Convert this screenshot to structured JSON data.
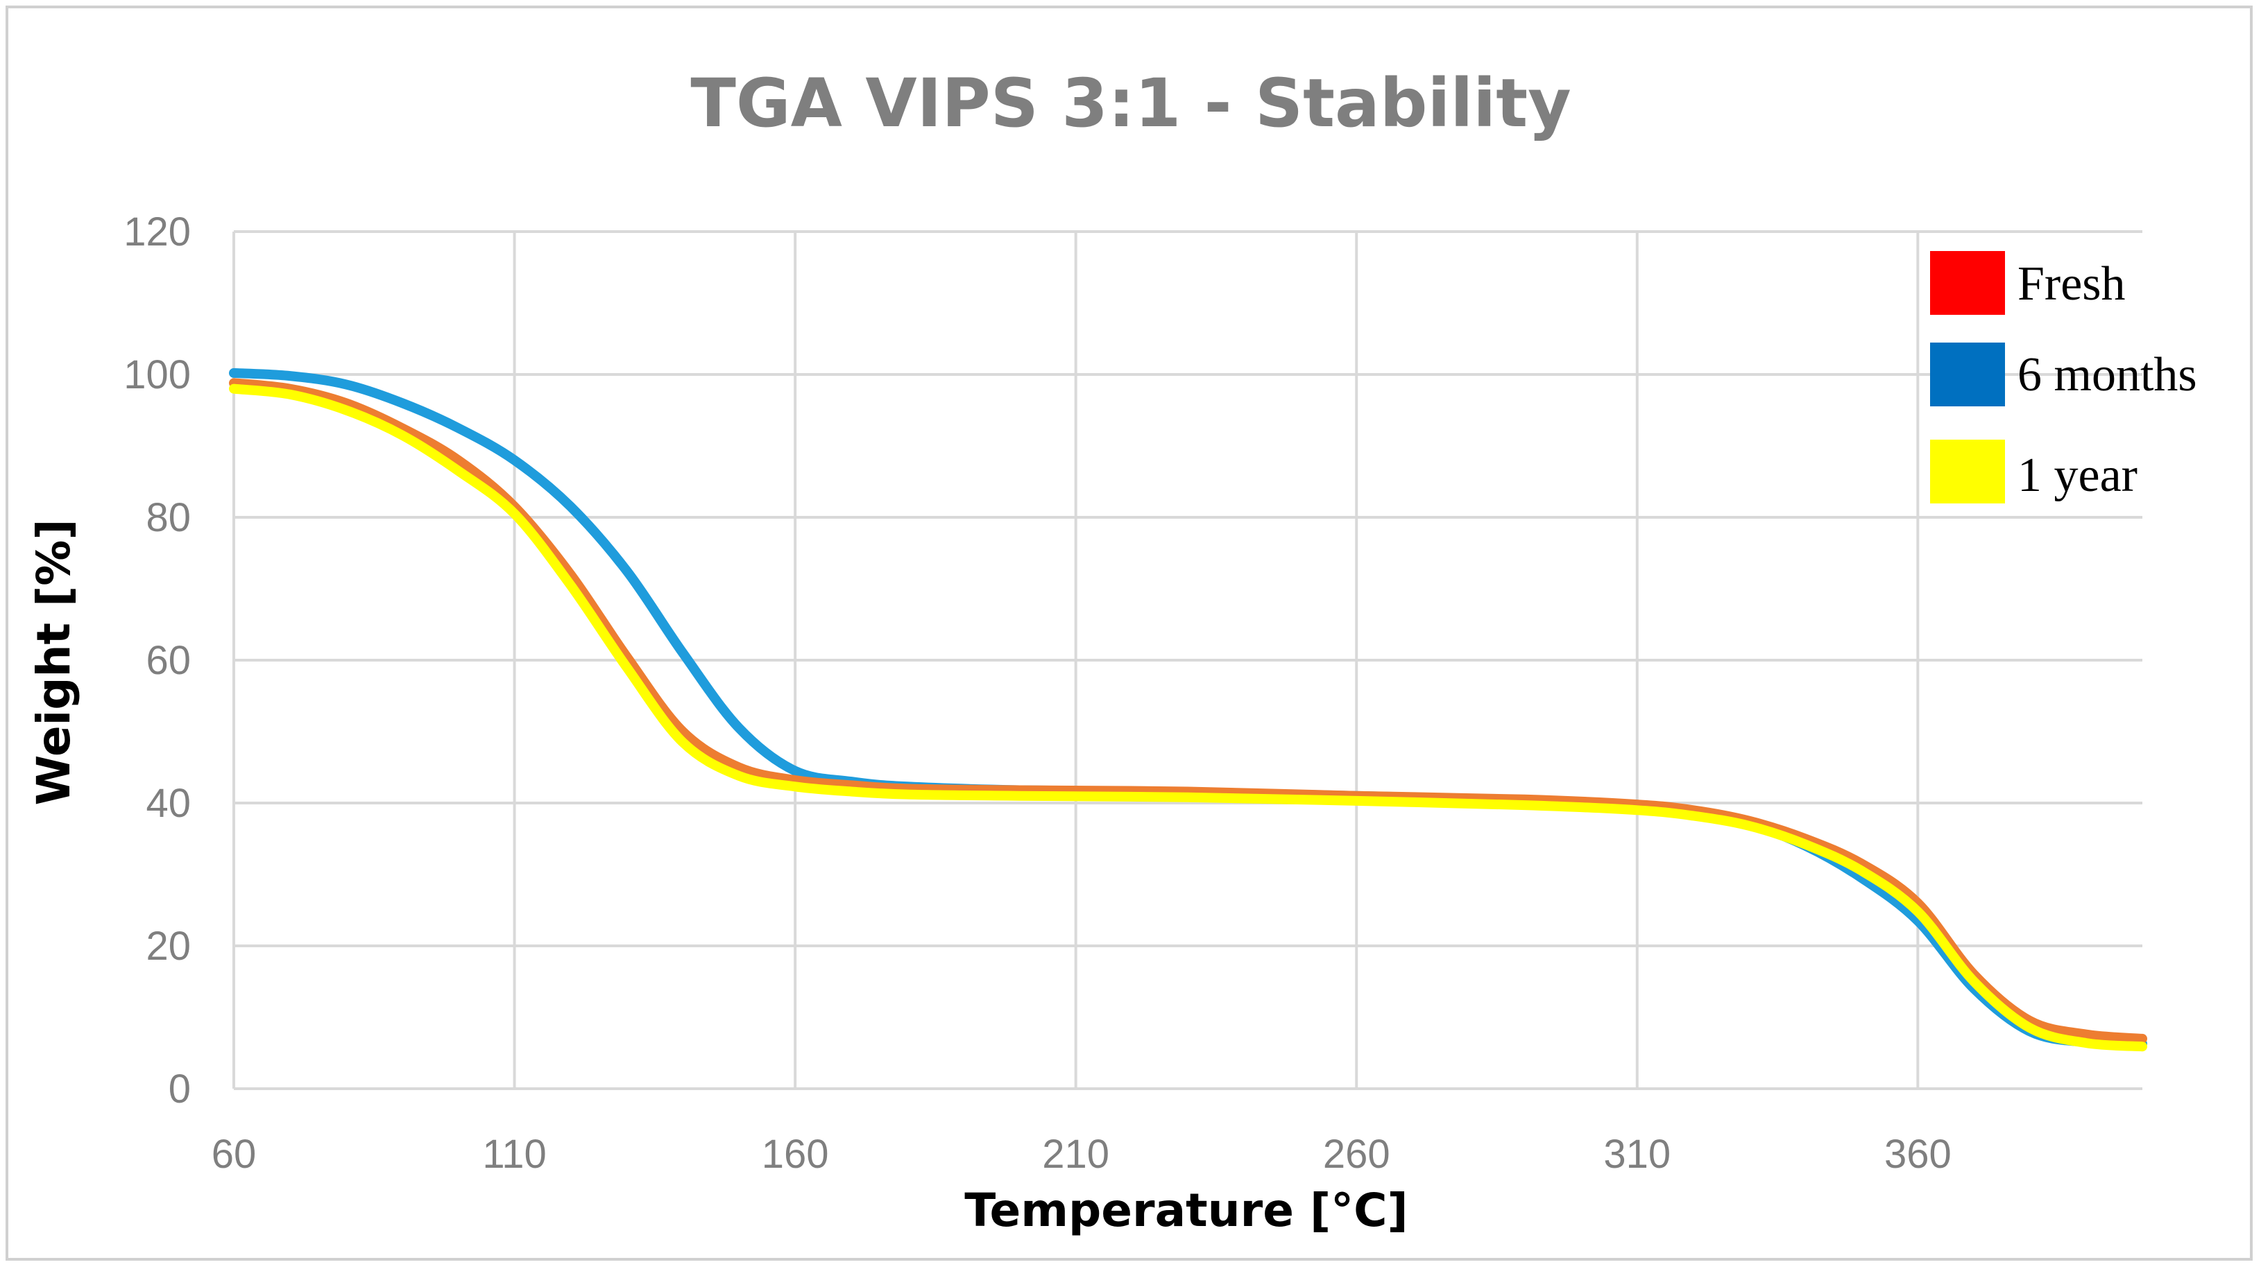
{
  "chart_data": {
    "type": "line",
    "title": "TGA VIPS 3:1 - Stability",
    "xlabel": "Temperature [°C]",
    "ylabel": "Weight [%]",
    "xlim": [
      60,
      400
    ],
    "ylim": [
      0,
      120
    ],
    "x_ticks": [
      "60",
      "110",
      "160",
      "210",
      "260",
      "310",
      "360"
    ],
    "y_ticks": [
      "0",
      "20",
      "40",
      "60",
      "80",
      "100",
      "120"
    ],
    "grid": true,
    "legend_position": "top-right",
    "series": [
      {
        "name": "Fresh",
        "color": "#ed7d31",
        "legend_color": "#ff0000",
        "x": [
          60,
          70,
          80,
          90,
          100,
          110,
          120,
          130,
          140,
          150,
          160,
          170,
          180,
          200,
          230,
          260,
          290,
          310,
          320,
          330,
          340,
          350,
          360,
          370,
          380,
          390,
          400
        ],
        "y": [
          98.8,
          98.0,
          96.0,
          92.5,
          88.0,
          81.5,
          72.0,
          60.5,
          50.0,
          45.0,
          43.2,
          42.5,
          42.0,
          41.8,
          41.6,
          41.0,
          40.5,
          39.8,
          39.0,
          37.5,
          35.0,
          31.5,
          26.0,
          16.0,
          9.5,
          7.6,
          7.0
        ]
      },
      {
        "name": "6 months",
        "color": "#1f9cdc",
        "legend_color": "#0070c0",
        "x": [
          60,
          70,
          80,
          90,
          100,
          110,
          120,
          130,
          140,
          150,
          160,
          170,
          180,
          200,
          230,
          260,
          290,
          310,
          320,
          330,
          340,
          350,
          360,
          370,
          380,
          390,
          400
        ],
        "y": [
          100.2,
          99.8,
          98.6,
          96.0,
          92.5,
          88.0,
          81.5,
          72.5,
          61.0,
          50.5,
          44.5,
          43.0,
          42.3,
          41.8,
          41.5,
          41.0,
          40.3,
          39.3,
          38.5,
          37.0,
          34.0,
          29.5,
          23.5,
          14.0,
          8.0,
          6.5,
          6.3
        ]
      },
      {
        "name": "1 year",
        "color": "#ffff00",
        "legend_color": "#ffff00",
        "x": [
          60,
          70,
          80,
          90,
          100,
          110,
          120,
          130,
          140,
          150,
          160,
          170,
          180,
          200,
          230,
          260,
          290,
          310,
          320,
          330,
          340,
          350,
          360,
          370,
          380,
          390,
          400
        ],
        "y": [
          98.0,
          97.2,
          95.0,
          91.5,
          86.5,
          80.5,
          70.5,
          59.0,
          48.5,
          43.8,
          42.3,
          41.6,
          41.2,
          41.0,
          40.8,
          40.3,
          39.7,
          39.0,
          38.2,
          36.8,
          34.2,
          30.5,
          24.8,
          15.0,
          8.5,
          6.4,
          5.9
        ]
      }
    ]
  }
}
